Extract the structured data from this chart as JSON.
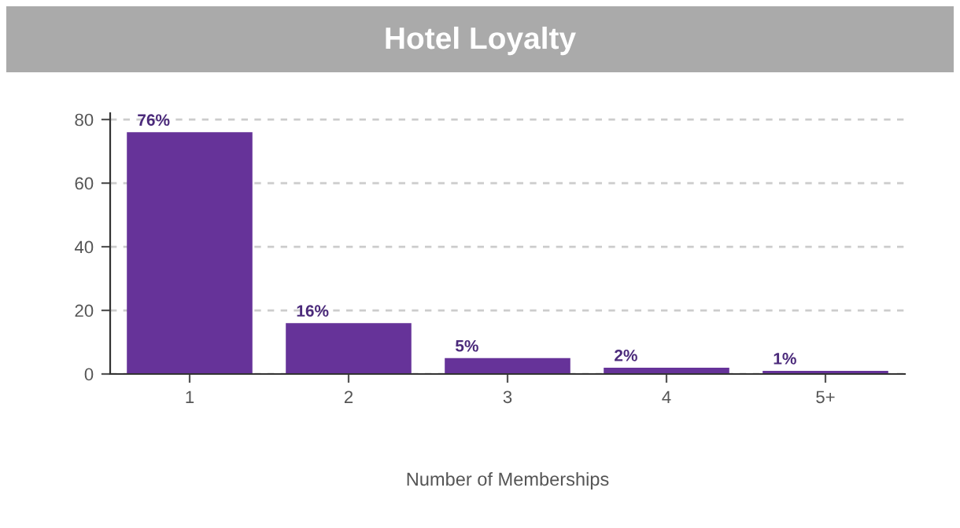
{
  "chart_data": {
    "type": "bar",
    "title": "Hotel Loyalty",
    "xlabel": "Number of Memberships",
    "categories": [
      "1",
      "2",
      "3",
      "4",
      "5+"
    ],
    "values": [
      76,
      16,
      5,
      2,
      1
    ],
    "value_labels": [
      "76%",
      "16%",
      "5%",
      "2%",
      "1%"
    ],
    "color": "#663399",
    "ylim": [
      0,
      82
    ],
    "yticks": [
      0,
      20,
      40,
      60,
      80
    ],
    "grid": "y",
    "line_style": "dashed"
  }
}
